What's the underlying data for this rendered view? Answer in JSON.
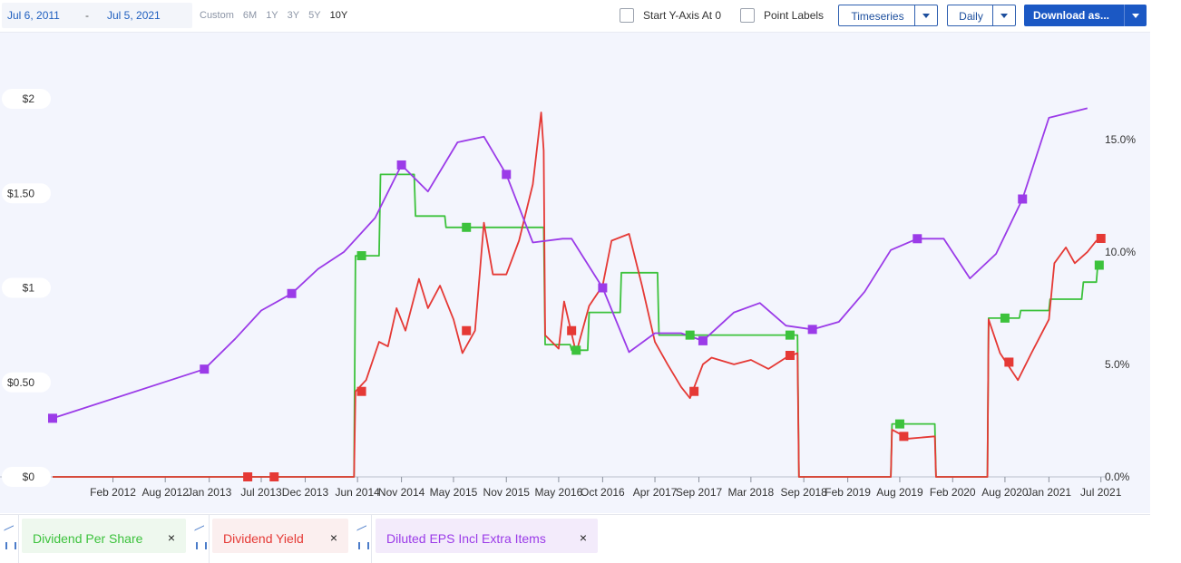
{
  "toolbar": {
    "date_start": "Jul 6, 2011",
    "date_sep": "-",
    "date_end": "Jul 5, 2021",
    "ranges": [
      "Custom",
      "6M",
      "1Y",
      "3Y",
      "5Y",
      "10Y"
    ],
    "active_range": "10Y",
    "start_y_axis_label": "Start Y-Axis At 0",
    "point_labels_label": "Point Labels",
    "timeseries_label": "Timeseries",
    "daily_label": "Daily",
    "download_label": "Download as..."
  },
  "legend": [
    {
      "label": "Dividend Per Share",
      "color": "#3cc23c",
      "bg": "#eef8ee",
      "close": "×"
    },
    {
      "label": "Dividend Yield",
      "color": "#e53935",
      "bg": "#fbefef",
      "close": "×"
    },
    {
      "label": "Diluted EPS Incl Extra Items",
      "color": "#9b3be8",
      "bg": "#f3ebfb",
      "close": "×"
    }
  ],
  "chart_data": {
    "type": "line",
    "x_tick_labels": [
      "Feb 2012",
      "Aug 2012",
      "Jan 2013",
      "Jul 2013",
      "Dec 2013",
      "Jun 2014",
      "Nov 2014",
      "May 2015",
      "Nov 2015",
      "May 2016",
      "Oct 2016",
      "Apr 2017",
      "Sep 2017",
      "Mar 2018",
      "Sep 2018",
      "Feb 2019",
      "Aug 2019",
      "Feb 2020",
      "Aug 2020",
      "Jan 2021",
      "Jul 2021"
    ],
    "x_tick_dates": [
      "2012-02-01",
      "2012-08-01",
      "2013-01-01",
      "2013-07-01",
      "2013-12-01",
      "2014-06-01",
      "2014-11-01",
      "2015-05-01",
      "2015-11-01",
      "2016-05-01",
      "2016-10-01",
      "2017-04-01",
      "2017-09-01",
      "2018-03-01",
      "2018-09-01",
      "2019-02-01",
      "2019-08-01",
      "2020-02-01",
      "2020-08-01",
      "2021-01-01",
      "2021-07-01"
    ],
    "xlim": [
      "2011-07-06",
      "2021-07-05"
    ],
    "left_axis": {
      "ticks": [
        0,
        0.5,
        1,
        1.5,
        2
      ],
      "tick_labels": [
        "$0",
        "$0.50",
        "$1",
        "$1.50",
        "$2"
      ],
      "ylim": [
        0,
        2.0
      ]
    },
    "right_axis": {
      "ticks": [
        0,
        5,
        10,
        15
      ],
      "tick_labels": [
        "0.0%",
        "5.0%",
        "10.0%",
        "15.0%"
      ],
      "ylim": [
        0,
        16
      ]
    },
    "grid": false,
    "series": [
      {
        "name": "Diluted EPS Incl Extra Items",
        "axis": "left",
        "color": "#9b3be8",
        "points": [
          [
            "2011-07-06",
            0.31
          ],
          [
            "2012-12-15",
            0.57
          ],
          [
            "2013-04-01",
            0.73
          ],
          [
            "2013-07-01",
            0.88
          ],
          [
            "2013-10-15",
            0.97
          ],
          [
            "2014-01-15",
            1.1
          ],
          [
            "2014-04-15",
            1.19
          ],
          [
            "2014-08-01",
            1.37
          ],
          [
            "2014-11-01",
            1.65
          ],
          [
            "2015-02-01",
            1.51
          ],
          [
            "2015-05-15",
            1.77
          ],
          [
            "2015-08-15",
            1.8
          ],
          [
            "2015-11-01",
            1.6
          ],
          [
            "2016-02-01",
            1.24
          ],
          [
            "2016-05-15",
            1.26
          ],
          [
            "2016-06-15",
            1.26
          ],
          [
            "2016-10-01",
            1.0
          ],
          [
            "2017-01-01",
            0.66
          ],
          [
            "2017-04-01",
            0.76
          ],
          [
            "2017-07-01",
            0.76
          ],
          [
            "2017-09-15",
            0.72
          ],
          [
            "2018-01-01",
            0.87
          ],
          [
            "2018-04-01",
            0.92
          ],
          [
            "2018-07-01",
            0.8
          ],
          [
            "2018-10-01",
            0.78
          ],
          [
            "2019-01-01",
            0.82
          ],
          [
            "2019-04-01",
            0.98
          ],
          [
            "2019-07-01",
            1.2
          ],
          [
            "2019-10-01",
            1.26
          ],
          [
            "2020-01-01",
            1.26
          ],
          [
            "2020-04-01",
            1.05
          ],
          [
            "2020-07-01",
            1.18
          ],
          [
            "2020-10-01",
            1.47
          ],
          [
            "2021-01-01",
            1.9
          ],
          [
            "2021-05-15",
            1.95
          ]
        ],
        "markers": [
          [
            "2011-07-06",
            0.31
          ],
          [
            "2012-12-15",
            0.57
          ],
          [
            "2013-10-15",
            0.97
          ],
          [
            "2014-11-01",
            1.65
          ],
          [
            "2015-11-01",
            1.6
          ],
          [
            "2016-10-01",
            1.0
          ],
          [
            "2017-09-15",
            0.72
          ],
          [
            "2018-10-01",
            0.78
          ],
          [
            "2019-10-01",
            1.26
          ],
          [
            "2020-10-01",
            1.47
          ]
        ]
      },
      {
        "name": "Dividend Per Share",
        "axis": "left",
        "color": "#3cc23c",
        "step": true,
        "points": [
          [
            "2011-07-06",
            0
          ],
          [
            "2014-05-20",
            0
          ],
          [
            "2014-05-25",
            1.17
          ],
          [
            "2014-08-15",
            1.17
          ],
          [
            "2014-08-20",
            1.6
          ],
          [
            "2014-12-15",
            1.6
          ],
          [
            "2014-12-20",
            1.38
          ],
          [
            "2015-04-01",
            1.38
          ],
          [
            "2015-04-05",
            1.32
          ],
          [
            "2016-03-10",
            1.32
          ],
          [
            "2016-03-15",
            0.7
          ],
          [
            "2016-06-10",
            0.7
          ],
          [
            "2016-06-15",
            0.67
          ],
          [
            "2016-08-10",
            0.67
          ],
          [
            "2016-08-15",
            0.87
          ],
          [
            "2016-12-01",
            0.87
          ],
          [
            "2016-12-05",
            1.08
          ],
          [
            "2017-04-10",
            1.08
          ],
          [
            "2017-04-15",
            0.75
          ],
          [
            "2018-08-10",
            0.75
          ],
          [
            "2018-08-15",
            0
          ],
          [
            "2019-07-01",
            0
          ],
          [
            "2019-07-05",
            0.28
          ],
          [
            "2019-12-01",
            0.28
          ],
          [
            "2019-12-05",
            0
          ],
          [
            "2020-06-01",
            0
          ],
          [
            "2020-06-05",
            0.84
          ],
          [
            "2020-09-20",
            0.84
          ],
          [
            "2020-09-25",
            0.88
          ],
          [
            "2021-01-01",
            0.88
          ],
          [
            "2021-01-05",
            0.94
          ],
          [
            "2021-04-25",
            0.94
          ],
          [
            "2021-05-01",
            1.03
          ],
          [
            "2021-06-15",
            1.03
          ],
          [
            "2021-06-20",
            1.12
          ]
        ],
        "markers": [
          [
            "2014-06-15",
            1.17
          ],
          [
            "2015-06-15",
            1.32
          ],
          [
            "2016-07-01",
            0.67
          ],
          [
            "2017-08-01",
            0.75
          ],
          [
            "2018-07-15",
            0.75
          ],
          [
            "2019-08-01",
            0.28
          ],
          [
            "2020-08-01",
            0.84
          ],
          [
            "2021-06-25",
            1.12
          ]
        ]
      },
      {
        "name": "Dividend Yield",
        "axis": "right",
        "color": "#e53935",
        "points": [
          [
            "2011-07-06",
            0
          ],
          [
            "2014-05-20",
            0
          ],
          [
            "2014-05-25",
            3.8
          ],
          [
            "2014-07-01",
            4.3
          ],
          [
            "2014-08-15",
            6.0
          ],
          [
            "2014-09-15",
            5.8
          ],
          [
            "2014-10-15",
            7.5
          ],
          [
            "2014-11-15",
            6.5
          ],
          [
            "2015-01-01",
            8.8
          ],
          [
            "2015-02-01",
            7.5
          ],
          [
            "2015-03-15",
            8.5
          ],
          [
            "2015-05-01",
            7.0
          ],
          [
            "2015-06-01",
            5.5
          ],
          [
            "2015-07-15",
            6.5
          ],
          [
            "2015-08-15",
            11.3
          ],
          [
            "2015-09-15",
            9.0
          ],
          [
            "2015-11-01",
            9.0
          ],
          [
            "2015-12-15",
            10.5
          ],
          [
            "2016-02-01",
            13.0
          ],
          [
            "2016-03-01",
            16.2
          ],
          [
            "2016-03-10",
            14.5
          ],
          [
            "2016-03-15",
            6.3
          ],
          [
            "2016-05-01",
            5.7
          ],
          [
            "2016-05-20",
            7.8
          ],
          [
            "2016-07-01",
            5.5
          ],
          [
            "2016-08-15",
            7.6
          ],
          [
            "2016-10-01",
            8.5
          ],
          [
            "2016-11-01",
            10.5
          ],
          [
            "2017-01-01",
            10.8
          ],
          [
            "2017-02-15",
            8.5
          ],
          [
            "2017-04-01",
            6.0
          ],
          [
            "2017-05-15",
            5.0
          ],
          [
            "2017-07-01",
            4.0
          ],
          [
            "2017-08-01",
            3.5
          ],
          [
            "2017-09-15",
            5.0
          ],
          [
            "2017-10-15",
            5.3
          ],
          [
            "2018-01-01",
            5.0
          ],
          [
            "2018-03-01",
            5.2
          ],
          [
            "2018-05-01",
            4.8
          ],
          [
            "2018-07-01",
            5.3
          ],
          [
            "2018-08-10",
            5.5
          ],
          [
            "2018-08-15",
            0
          ],
          [
            "2019-07-01",
            0
          ],
          [
            "2019-07-05",
            2.1
          ],
          [
            "2019-09-01",
            1.7
          ],
          [
            "2019-12-01",
            1.8
          ],
          [
            "2019-12-05",
            0
          ],
          [
            "2020-06-01",
            0
          ],
          [
            "2020-06-05",
            7.0
          ],
          [
            "2020-07-15",
            5.5
          ],
          [
            "2020-09-15",
            4.3
          ],
          [
            "2020-11-01",
            5.5
          ],
          [
            "2021-01-01",
            7.0
          ],
          [
            "2021-01-20",
            9.5
          ],
          [
            "2021-03-01",
            10.2
          ],
          [
            "2021-04-01",
            9.5
          ],
          [
            "2021-05-15",
            10.0
          ],
          [
            "2021-06-15",
            10.5
          ],
          [
            "2021-07-05",
            10.5
          ]
        ],
        "markers": [
          [
            "2013-05-15",
            0
          ],
          [
            "2013-08-15",
            0
          ],
          [
            "2014-06-15",
            3.8
          ],
          [
            "2015-06-15",
            6.5
          ],
          [
            "2016-06-15",
            6.5
          ],
          [
            "2017-08-15",
            3.8
          ],
          [
            "2018-07-15",
            5.4
          ],
          [
            "2019-08-15",
            1.8
          ],
          [
            "2020-08-15",
            5.1
          ],
          [
            "2021-07-01",
            10.6
          ]
        ]
      }
    ]
  }
}
